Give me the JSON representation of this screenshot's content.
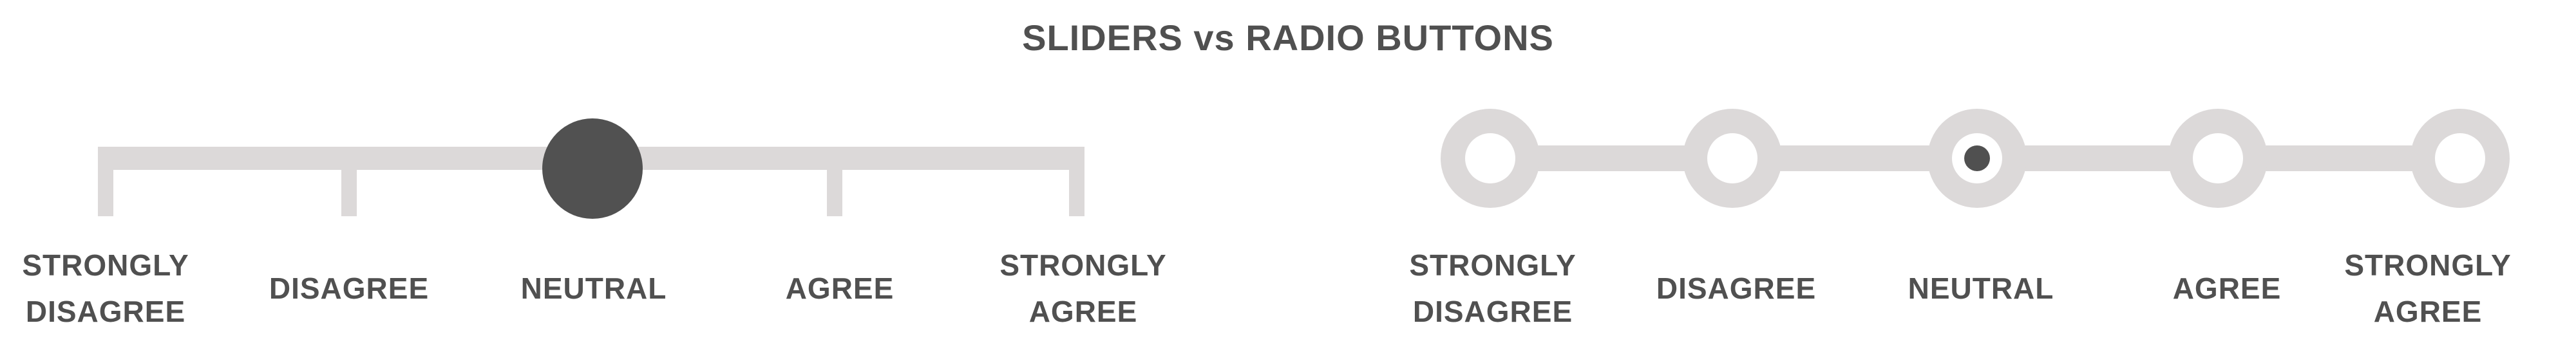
{
  "title": "SLIDERS vs RADIO BUTTONS",
  "colors": {
    "text": "#505050",
    "track": "#dcd9d9",
    "thumb": "#515151",
    "background": "#ffffff"
  },
  "slider": {
    "selected_index": 2,
    "options": [
      [
        "STRONGLY",
        "DISAGREE"
      ],
      [
        "DISAGREE"
      ],
      [
        "NEUTRAL"
      ],
      [
        "AGREE"
      ],
      [
        "STRONGLY",
        "AGREE"
      ]
    ]
  },
  "radio": {
    "selected_index": 2,
    "options": [
      [
        "STRONGLY",
        "DISAGREE"
      ],
      [
        "DISAGREE"
      ],
      [
        "NEUTRAL"
      ],
      [
        "AGREE"
      ],
      [
        "STRONGLY",
        "AGREE"
      ]
    ]
  }
}
